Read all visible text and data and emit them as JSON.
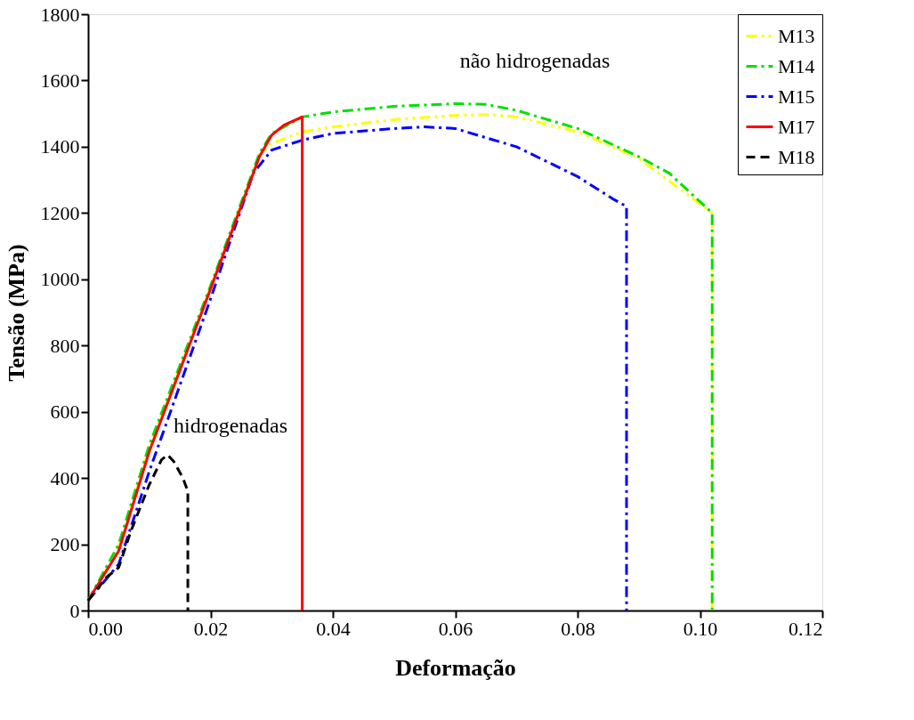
{
  "chart_data": {
    "type": "line",
    "xlabel": "Deformação",
    "ylabel": "Tensão (MPa)",
    "xlim": [
      0,
      0.12
    ],
    "xticks": [
      {
        "value": 0,
        "label": "0.00"
      },
      {
        "value": 0.02,
        "label": "0.02"
      },
      {
        "value": 0.04,
        "label": "0.04"
      },
      {
        "value": 0.06,
        "label": "0.06"
      },
      {
        "value": 0.08,
        "label": "0.08"
      },
      {
        "value": 0.1,
        "label": "0.10"
      },
      {
        "value": 0.12,
        "label": "0.12"
      }
    ],
    "ylim": [
      0,
      1800
    ],
    "yticks": [
      0,
      200,
      400,
      600,
      800,
      1000,
      1200,
      1400,
      1600,
      1800
    ],
    "grid": false,
    "legend": "top right",
    "marker": "none",
    "annotations": [
      "não hidrogenadas",
      "hidrogenadas"
    ],
    "series": [
      {
        "name": "M13",
        "color": "#ffff00",
        "line_style": "dashdotdot",
        "x": [
          0,
          0.005,
          0.01,
          0.02,
          0.028,
          0.03,
          0.035,
          0.04,
          0.05,
          0.06,
          0.066,
          0.07,
          0.08,
          0.09,
          0.102,
          0.102
        ],
        "values": [
          30,
          190,
          490,
          975,
          1375,
          1410,
          1445,
          1460,
          1482,
          1495,
          1497,
          1490,
          1445,
          1365,
          1200,
          0
        ]
      },
      {
        "name": "M14",
        "color": "#00e000",
        "line_style": "dashdot",
        "x": [
          0,
          0.005,
          0.01,
          0.02,
          0.028,
          0.03,
          0.035,
          0.04,
          0.05,
          0.06,
          0.065,
          0.07,
          0.08,
          0.09,
          0.095,
          0.102,
          0.102
        ],
        "values": [
          30,
          200,
          500,
          980,
          1380,
          1440,
          1490,
          1505,
          1522,
          1530,
          1528,
          1510,
          1455,
          1370,
          1320,
          1200,
          0
        ]
      },
      {
        "name": "M15",
        "color": "#0000ff",
        "line_style": "dashdot",
        "x": [
          0,
          0.005,
          0.01,
          0.02,
          0.027,
          0.03,
          0.035,
          0.04,
          0.05,
          0.055,
          0.06,
          0.07,
          0.08,
          0.086,
          0.088,
          0.088
        ],
        "values": [
          30,
          140,
          420,
          940,
          1320,
          1390,
          1420,
          1440,
          1455,
          1460,
          1455,
          1400,
          1310,
          1240,
          1220,
          0
        ]
      },
      {
        "name": "M17",
        "color": "#ff0000",
        "line_style": "solid",
        "x": [
          0,
          0.005,
          0.01,
          0.02,
          0.028,
          0.03,
          0.032,
          0.035,
          0.035
        ],
        "values": [
          30,
          180,
          480,
          970,
          1370,
          1435,
          1465,
          1490,
          0
        ]
      },
      {
        "name": "M18",
        "color": "#000000",
        "line_style": "dashed",
        "x": [
          0,
          0.003,
          0.005,
          0.007,
          0.01,
          0.012,
          0.013,
          0.014,
          0.0155,
          0.0163,
          0.0163
        ],
        "values": [
          30,
          100,
          130,
          240,
          380,
          455,
          470,
          450,
          400,
          360,
          0
        ]
      }
    ]
  }
}
